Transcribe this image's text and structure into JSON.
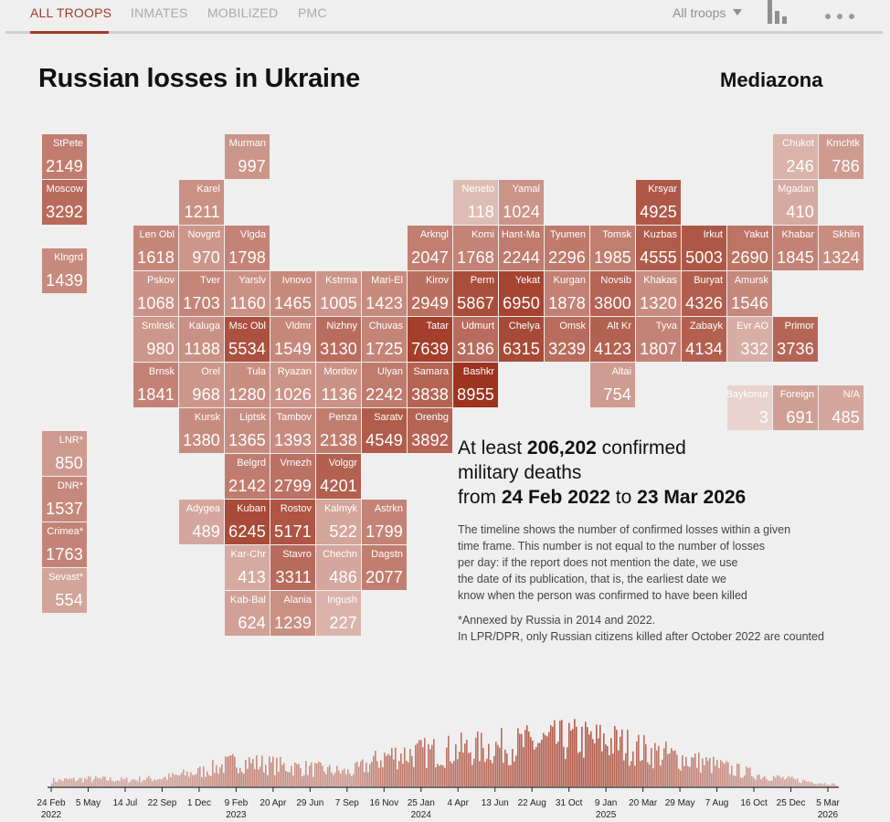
{
  "nav": {
    "tabs": [
      "ALL TROOPS",
      "INMATES",
      "MOBILIZED",
      "PMC"
    ],
    "filter": "All troops"
  },
  "title": "Russian losses in Ukraine",
  "brand": "Mediazona",
  "summary": {
    "prefix": "At least",
    "total": "206,202",
    "suffix": "confirmed",
    "line2": "military deaths",
    "from_word": "from",
    "start": "24 Feb 2022",
    "to_word": "to",
    "end": "23 Mar 2026"
  },
  "note": [
    "The timeline shows the number of confirmed losses within a given",
    "time frame. This number is not equal to the number of losses",
    "per day: if the report does not mention the date, we use",
    "the date of its publication, that is, the earliest date we",
    "know when the person was confirmed to have been killed"
  ],
  "note2": [
    "*Annexed by Russia in 2014 and 2022.",
    "In LPR/DPR, only Russian citizens killed after October 2022 are counted"
  ],
  "colors": {
    "accent": "#a33a2a",
    "tile_dark": "#a5402e",
    "tile_light": "#e8d3cd",
    "bar": "#d8aca1"
  },
  "chart_data": [
    {
      "type": "heatmap",
      "title": "Russian losses in Ukraine by region",
      "cells": [
        {
          "name": "StPete",
          "value": 2149,
          "col": 0,
          "row": 0
        },
        {
          "name": "Murman",
          "value": 997,
          "col": 4,
          "row": 0
        },
        {
          "name": "Chukot",
          "value": 246,
          "col": 16,
          "row": 0
        },
        {
          "name": "Kmchtk",
          "value": 786,
          "col": 17,
          "row": 0
        },
        {
          "name": "Moscow",
          "value": 3292,
          "col": 0,
          "row": 1
        },
        {
          "name": "Karel",
          "value": 1211,
          "col": 3,
          "row": 1
        },
        {
          "name": "Neneto",
          "value": 118,
          "col": 9,
          "row": 1
        },
        {
          "name": "Yamal",
          "value": 1024,
          "col": 10,
          "row": 1
        },
        {
          "name": "Krsyar",
          "value": 4925,
          "col": 13,
          "row": 1
        },
        {
          "name": "Mgadan",
          "value": 410,
          "col": 16,
          "row": 1
        },
        {
          "name": "Len Obl",
          "value": 1618,
          "col": 2,
          "row": 2
        },
        {
          "name": "Novgrd",
          "value": 970,
          "col": 3,
          "row": 2
        },
        {
          "name": "Vlgda",
          "value": 1798,
          "col": 4,
          "row": 2
        },
        {
          "name": "Arkngl",
          "value": 2047,
          "col": 8,
          "row": 2
        },
        {
          "name": "Komi",
          "value": 1768,
          "col": 9,
          "row": 2
        },
        {
          "name": "Hant-Ma",
          "value": 2244,
          "col": 10,
          "row": 2
        },
        {
          "name": "Tyumen",
          "value": 2296,
          "col": 11,
          "row": 2
        },
        {
          "name": "Tomsk",
          "value": 1985,
          "col": 12,
          "row": 2
        },
        {
          "name": "Kuzbas",
          "value": 4555,
          "col": 13,
          "row": 2
        },
        {
          "name": "Irkut",
          "value": 5003,
          "col": 14,
          "row": 2
        },
        {
          "name": "Yakut",
          "value": 2690,
          "col": 15,
          "row": 2
        },
        {
          "name": "Khabar",
          "value": 1845,
          "col": 16,
          "row": 2
        },
        {
          "name": "Skhlin",
          "value": 1324,
          "col": 17,
          "row": 2
        },
        {
          "name": "Klngrd",
          "value": 1439,
          "col": 0,
          "row": 2.5
        },
        {
          "name": "Pskov",
          "value": 1068,
          "col": 2,
          "row": 3
        },
        {
          "name": "Tver",
          "value": 1703,
          "col": 3,
          "row": 3
        },
        {
          "name": "Yarslv",
          "value": 1160,
          "col": 4,
          "row": 3
        },
        {
          "name": "Ivnovo",
          "value": 1465,
          "col": 5,
          "row": 3
        },
        {
          "name": "Kstrma",
          "value": 1005,
          "col": 6,
          "row": 3
        },
        {
          "name": "Mari-El",
          "value": 1423,
          "col": 7,
          "row": 3
        },
        {
          "name": "Kirov",
          "value": 2949,
          "col": 8,
          "row": 3
        },
        {
          "name": "Perm",
          "value": 5867,
          "col": 9,
          "row": 3
        },
        {
          "name": "Yekat",
          "value": 6950,
          "col": 10,
          "row": 3
        },
        {
          "name": "Kurgan",
          "value": 1878,
          "col": 11,
          "row": 3
        },
        {
          "name": "Novsib",
          "value": 3800,
          "col": 12,
          "row": 3
        },
        {
          "name": "Khakas",
          "value": 1320,
          "col": 13,
          "row": 3
        },
        {
          "name": "Buryat",
          "value": 4326,
          "col": 14,
          "row": 3
        },
        {
          "name": "Amursk",
          "value": 1546,
          "col": 15,
          "row": 3
        },
        {
          "name": "Smlnsk",
          "value": 980,
          "col": 2,
          "row": 4
        },
        {
          "name": "Kaluga",
          "value": 1188,
          "col": 3,
          "row": 4
        },
        {
          "name": "Msc Obl",
          "value": 5534,
          "col": 4,
          "row": 4
        },
        {
          "name": "Vldmr",
          "value": 1549,
          "col": 5,
          "row": 4
        },
        {
          "name": "Nizhny",
          "value": 3130,
          "col": 6,
          "row": 4
        },
        {
          "name": "Chuvas",
          "value": 1725,
          "col": 7,
          "row": 4
        },
        {
          "name": "Tatar",
          "value": 7639,
          "col": 8,
          "row": 4
        },
        {
          "name": "Udmurt",
          "value": 3186,
          "col": 9,
          "row": 4
        },
        {
          "name": "Chelya",
          "value": 6315,
          "col": 10,
          "row": 4
        },
        {
          "name": "Omsk",
          "value": 3239,
          "col": 11,
          "row": 4
        },
        {
          "name": "Alt Kr",
          "value": 4123,
          "col": 12,
          "row": 4
        },
        {
          "name": "Tyva",
          "value": 1807,
          "col": 13,
          "row": 4
        },
        {
          "name": "Zabayk",
          "value": 4134,
          "col": 14,
          "row": 4
        },
        {
          "name": "Evr AO",
          "value": 332,
          "col": 15,
          "row": 4
        },
        {
          "name": "Primor",
          "value": 3736,
          "col": 16,
          "row": 4
        },
        {
          "name": "Brnsk",
          "value": 1841,
          "col": 2,
          "row": 5
        },
        {
          "name": "Orel",
          "value": 968,
          "col": 3,
          "row": 5
        },
        {
          "name": "Tula",
          "value": 1280,
          "col": 4,
          "row": 5
        },
        {
          "name": "Ryazan",
          "value": 1026,
          "col": 5,
          "row": 5
        },
        {
          "name": "Mordov",
          "value": 1136,
          "col": 6,
          "row": 5
        },
        {
          "name": "Ulyan",
          "value": 2242,
          "col": 7,
          "row": 5
        },
        {
          "name": "Samara",
          "value": 3838,
          "col": 8,
          "row": 5
        },
        {
          "name": "Bashkr",
          "value": 8955,
          "col": 9,
          "row": 5
        },
        {
          "name": "Altai",
          "value": 754,
          "col": 12,
          "row": 5
        },
        {
          "name": "Baykonur",
          "value": 3,
          "col": 15,
          "row": 5.5
        },
        {
          "name": "Foreign",
          "value": 691,
          "col": 16,
          "row": 5.5
        },
        {
          "name": "N/A",
          "value": 485,
          "col": 17,
          "row": 5.5
        },
        {
          "name": "Kursk",
          "value": 1380,
          "col": 3,
          "row": 6
        },
        {
          "name": "Liptsk",
          "value": 1365,
          "col": 4,
          "row": 6
        },
        {
          "name": "Tambov",
          "value": 1393,
          "col": 5,
          "row": 6
        },
        {
          "name": "Penza",
          "value": 2138,
          "col": 6,
          "row": 6
        },
        {
          "name": "Saratv",
          "value": 4549,
          "col": 7,
          "row": 6
        },
        {
          "name": "Orenbg",
          "value": 3892,
          "col": 8,
          "row": 6
        },
        {
          "name": "LNR*",
          "value": 850,
          "col": 0,
          "row": 6.5
        },
        {
          "name": "Belgrd",
          "value": 2142,
          "col": 4,
          "row": 7
        },
        {
          "name": "Vrnezh",
          "value": 2799,
          "col": 5,
          "row": 7
        },
        {
          "name": "Volggr",
          "value": 4201,
          "col": 6,
          "row": 7
        },
        {
          "name": "DNR*",
          "value": 1537,
          "col": 0,
          "row": 7.5
        },
        {
          "name": "Adygea",
          "value": 489,
          "col": 3,
          "row": 8
        },
        {
          "name": "Kuban",
          "value": 6245,
          "col": 4,
          "row": 8
        },
        {
          "name": "Rostov",
          "value": 5171,
          "col": 5,
          "row": 8
        },
        {
          "name": "Kalmyk",
          "value": 522,
          "col": 6,
          "row": 8
        },
        {
          "name": "Astrkn",
          "value": 1799,
          "col": 7,
          "row": 8
        },
        {
          "name": "Crimea*",
          "value": 1763,
          "col": 0,
          "row": 8.5
        },
        {
          "name": "Kar-Chr",
          "value": 413,
          "col": 4,
          "row": 9
        },
        {
          "name": "Stavro",
          "value": 3311,
          "col": 5,
          "row": 9
        },
        {
          "name": "Chechn",
          "value": 486,
          "col": 6,
          "row": 9
        },
        {
          "name": "Dagstn",
          "value": 2077,
          "col": 7,
          "row": 9
        },
        {
          "name": "Sevast*",
          "value": 554,
          "col": 0,
          "row": 9.5
        },
        {
          "name": "Kab-Bal",
          "value": 624,
          "col": 4,
          "row": 10
        },
        {
          "name": "Alania",
          "value": 1239,
          "col": 5,
          "row": 10
        },
        {
          "name": "Ingush",
          "value": 227,
          "col": 6,
          "row": 10
        }
      ]
    },
    {
      "type": "bar",
      "title": "Timeline of confirmed losses",
      "x_start": "24 Feb 2022",
      "x_end": "23 Mar 2026",
      "ticks": [
        {
          "label": "24 Feb",
          "year": "2022"
        },
        {
          "label": "5 May",
          "year": ""
        },
        {
          "label": "14 Jul",
          "year": ""
        },
        {
          "label": "22 Sep",
          "year": ""
        },
        {
          "label": "1 Dec",
          "year": ""
        },
        {
          "label": "9 Feb",
          "year": "2023"
        },
        {
          "label": "20 Apr",
          "year": ""
        },
        {
          "label": "29 Jun",
          "year": ""
        },
        {
          "label": "7 Sep",
          "year": ""
        },
        {
          "label": "16 Nov",
          "year": ""
        },
        {
          "label": "25 Jan",
          "year": "2024"
        },
        {
          "label": "4 Apr",
          "year": ""
        },
        {
          "label": "13 Jun",
          "year": ""
        },
        {
          "label": "22 Aug",
          "year": ""
        },
        {
          "label": "31 Oct",
          "year": ""
        },
        {
          "label": "9 Jan",
          "year": "2025"
        },
        {
          "label": "20 Mar",
          "year": ""
        },
        {
          "label": "29 May",
          "year": ""
        },
        {
          "label": "7 Aug",
          "year": ""
        },
        {
          "label": "16 Oct",
          "year": ""
        },
        {
          "label": "25 Dec",
          "year": ""
        },
        {
          "label": "5 Mar",
          "year": "2026"
        }
      ],
      "envelope": [
        {
          "date": "24 Feb 2022",
          "v": 0.12
        },
        {
          "date": "5 May 2022",
          "v": 0.15
        },
        {
          "date": "14 Jul 2022",
          "v": 0.13
        },
        {
          "date": "22 Sep 2022",
          "v": 0.17
        },
        {
          "date": "1 Dec 2022",
          "v": 0.3
        },
        {
          "date": "9 Feb 2023",
          "v": 0.5
        },
        {
          "date": "20 Apr 2023",
          "v": 0.42
        },
        {
          "date": "29 Jun 2023",
          "v": 0.35
        },
        {
          "date": "7 Sep 2023",
          "v": 0.28
        },
        {
          "date": "16 Nov 2023",
          "v": 0.62
        },
        {
          "date": "25 Jan 2024",
          "v": 0.68
        },
        {
          "date": "4 Apr 2024",
          "v": 0.74
        },
        {
          "date": "13 Jun 2024",
          "v": 0.8
        },
        {
          "date": "22 Aug 2024",
          "v": 0.88
        },
        {
          "date": "31 Oct 2024",
          "v": 0.95
        },
        {
          "date": "9 Jan 2025",
          "v": 0.9
        },
        {
          "date": "20 Mar 2025",
          "v": 0.7
        },
        {
          "date": "29 May 2025",
          "v": 0.55
        },
        {
          "date": "7 Aug 2025",
          "v": 0.38
        },
        {
          "date": "16 Oct 2025",
          "v": 0.22
        },
        {
          "date": "25 Dec 2025",
          "v": 0.12
        },
        {
          "date": "23 Mar 2026",
          "v": 0.04
        }
      ]
    }
  ]
}
